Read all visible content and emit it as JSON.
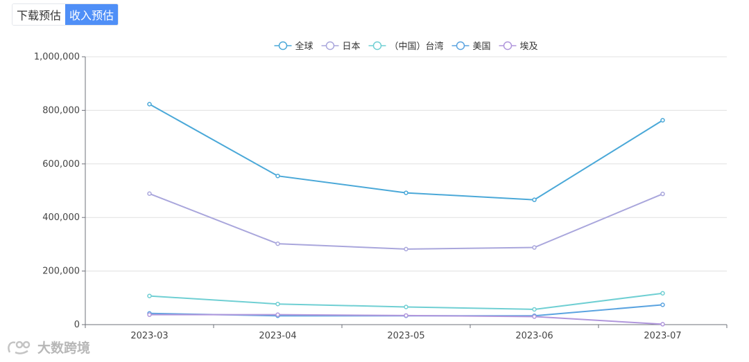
{
  "tabs": [
    {
      "label": "下载预估",
      "active": false
    },
    {
      "label": "收入预估",
      "active": true
    }
  ],
  "watermark": {
    "text": "大数跨境"
  },
  "chart_data": {
    "type": "line",
    "categories": [
      "2023-03",
      "2023-04",
      "2023-05",
      "2023-06",
      "2023-07"
    ],
    "ylim": [
      0,
      1000000
    ],
    "y_ticks": [
      0,
      200000,
      400000,
      600000,
      800000,
      1000000
    ],
    "y_tick_labels": [
      "0",
      "200,000",
      "400,000",
      "600,000",
      "800,000",
      "1,000,000"
    ],
    "grid": true,
    "legend_position": "top-center",
    "series": [
      {
        "name": "全球",
        "color": "#4aa8d8",
        "values": [
          823000,
          555000,
          492000,
          466000,
          763000
        ]
      },
      {
        "name": "日本",
        "color": "#a9a6dc",
        "values": [
          489000,
          302000,
          282000,
          288000,
          488000
        ]
      },
      {
        "name": "（中国）台湾",
        "color": "#6fcfd3",
        "values": [
          107000,
          77000,
          66000,
          57000,
          117000
        ]
      },
      {
        "name": "美国",
        "color": "#5aa3e0",
        "values": [
          42000,
          33000,
          33000,
          33000,
          74000
        ]
      },
      {
        "name": "埃及",
        "color": "#b096dc",
        "values": [
          37000,
          37000,
          34000,
          30000,
          1500
        ]
      }
    ]
  }
}
